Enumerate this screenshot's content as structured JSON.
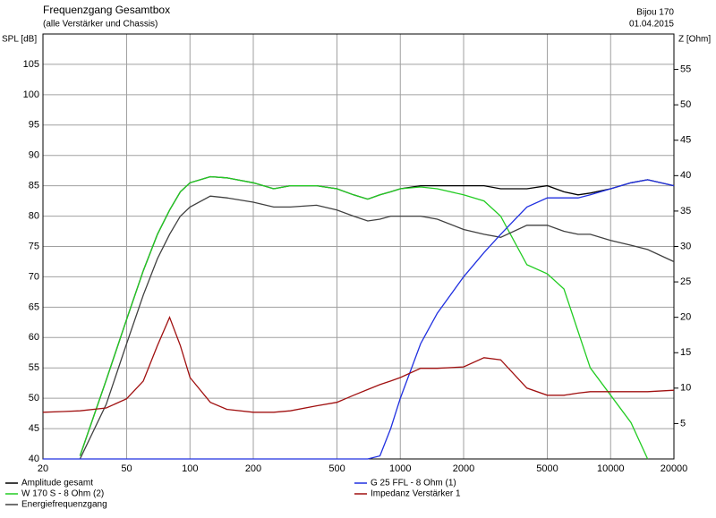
{
  "chart_data": {
    "type": "line",
    "title": "Frequenzgang Gesamtbox",
    "subtitle": "(alle Verstärker und Chassis)",
    "project": "Bijou 170",
    "date": "01.04.2015",
    "ylabel": "SPL [dB]",
    "y2label": "Z [Ohm]",
    "xscale": "log",
    "grid": true,
    "legend": "bottom",
    "x": [
      20,
      25,
      30,
      40,
      50,
      60,
      70,
      80,
      90,
      100,
      125,
      150,
      200,
      250,
      300,
      400,
      500,
      600,
      700,
      800,
      900,
      1000,
      1250,
      1500,
      2000,
      2500,
      3000,
      4000,
      5000,
      6000,
      7000,
      8000,
      10000,
      12500,
      15000,
      20000
    ],
    "series": [
      {
        "name": "Amplitude gesamt",
        "color": "#000000",
        "values": [
          null,
          null,
          40.5,
          53,
          63,
          71,
          77,
          81,
          84,
          85.5,
          86.5,
          86.3,
          85.5,
          84.5,
          85,
          85,
          84.5,
          83.5,
          82.8,
          83.5,
          84,
          84.5,
          85,
          85,
          85,
          85,
          84.5,
          84.5,
          85,
          84,
          83.5,
          83.8,
          84.5,
          85.5,
          86,
          85
        ]
      },
      {
        "name": "W 170 S - 8 Ohm (2)",
        "color": "#22cc22",
        "values": [
          null,
          null,
          40.5,
          53,
          63,
          71,
          77,
          81,
          84,
          85.5,
          86.5,
          86.3,
          85.5,
          84.5,
          85,
          85,
          84.5,
          83.5,
          82.8,
          83.5,
          84,
          84.5,
          84.8,
          84.5,
          83.5,
          82.5,
          80,
          72,
          70.5,
          68,
          61,
          55,
          50.5,
          46,
          40,
          null
        ]
      },
      {
        "name": "Energiefrequenzgang",
        "color": "#404040",
        "values": [
          null,
          null,
          40,
          49,
          59,
          67,
          73,
          77,
          80,
          81.5,
          83.3,
          83,
          82.3,
          81.5,
          81.5,
          81.8,
          81,
          80,
          79.2,
          79.5,
          80,
          80,
          80,
          79.5,
          77.8,
          77,
          76.5,
          78.5,
          78.5,
          77.5,
          77,
          77,
          76,
          75.2,
          74.5,
          72.5
        ]
      },
      {
        "name": "G 25 FFL - 8 Ohm (1)",
        "color": "#2030e0",
        "values": [
          40,
          40,
          40,
          40,
          40,
          40,
          40,
          40,
          40,
          40,
          40,
          40,
          40,
          40,
          40,
          40,
          40,
          40,
          40,
          40.5,
          45,
          50,
          59,
          64,
          70,
          74,
          77,
          81.5,
          83,
          83,
          83,
          83.5,
          84.5,
          85.5,
          86,
          85
        ]
      },
      {
        "name": "Impedanz Verstärker 1",
        "color": "#a01010",
        "axis": "y2",
        "values": [
          6.6,
          6.7,
          6.8,
          7.2,
          8.5,
          11,
          16,
          20,
          16,
          11.5,
          8,
          7,
          6.6,
          6.6,
          6.8,
          7.5,
          8,
          9,
          9.8,
          10.5,
          11,
          11.5,
          12.8,
          12.8,
          13,
          14.3,
          14,
          10,
          9,
          9,
          9.3,
          9.5,
          9.5,
          9.5,
          9.5,
          9.7
        ]
      }
    ],
    "xlim": [
      20,
      20000
    ],
    "xticks": [
      20,
      50,
      100,
      200,
      500,
      1000,
      2000,
      5000,
      10000,
      20000
    ],
    "ylim": [
      40,
      110
    ],
    "yticks": [
      40,
      45,
      50,
      55,
      60,
      65,
      70,
      75,
      80,
      85,
      90,
      95,
      100,
      105
    ],
    "y2lim": [
      0,
      60
    ],
    "y2ticks": [
      5,
      10,
      15,
      20,
      25,
      30,
      35,
      40,
      45,
      50,
      55
    ]
  }
}
